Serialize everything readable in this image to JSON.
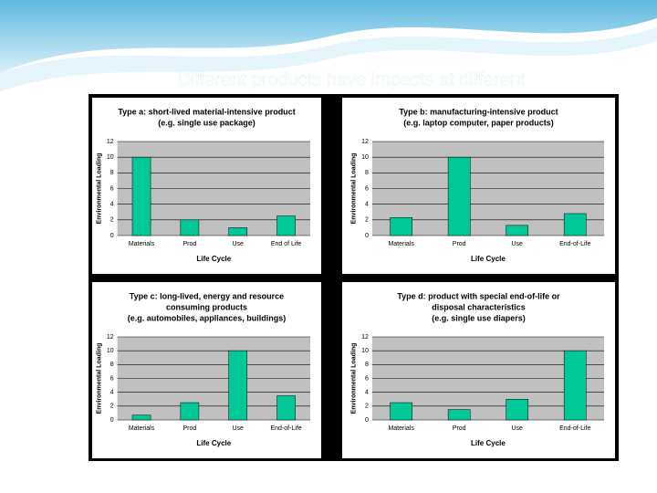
{
  "slide_title": "Different products have impacts at different",
  "chart_data": [
    {
      "type": "bar",
      "title": [
        "Type a: short-lived material-intensive product",
        "(e.g. single use package)"
      ],
      "categories": [
        "Materials",
        "Prod",
        "Use",
        "End of Life"
      ],
      "values": [
        10,
        2,
        1,
        2.5
      ],
      "color": "#00c896",
      "xlabel": "Life Cycle",
      "ylabel": "Environmental Loading",
      "ylim": [
        0,
        12
      ],
      "yticks": [
        0,
        2,
        4,
        6,
        8,
        10,
        12
      ],
      "grid": true
    },
    {
      "type": "bar",
      "title": [
        "Type b: manufacturing-intensive product",
        "(e.g. laptop computer, paper products)"
      ],
      "categories": [
        "Materials",
        "Prod",
        "Use",
        "End-of-Life"
      ],
      "values": [
        2.3,
        10,
        1.3,
        2.8
      ],
      "color": "#00c896",
      "xlabel": "Life Cycle",
      "ylabel": "Environmental Loading",
      "ylim": [
        0,
        12
      ],
      "yticks": [
        0,
        2,
        4,
        6,
        8,
        10,
        12
      ],
      "grid": true
    },
    {
      "type": "bar",
      "title": [
        "Type c: long-lived, energy and resource",
        "consuming products",
        "(e.g. automobiles, appliances, buildings)"
      ],
      "categories": [
        "Materials",
        "Prod",
        "Use",
        "End-of-Life"
      ],
      "values": [
        0.7,
        2.5,
        10,
        3.5
      ],
      "color": "#00c896",
      "xlabel": "Life Cycle",
      "ylabel": "Environmental Loading",
      "ylim": [
        0,
        12
      ],
      "yticks": [
        0,
        2,
        4,
        6,
        8,
        10,
        12
      ],
      "grid": true
    },
    {
      "type": "bar",
      "title": [
        "Type d: product with special end-of-life or",
        "disposal characteristics",
        "(e.g. single use diapers)"
      ],
      "categories": [
        "Materials",
        "Prod",
        "Use",
        "End-of-Life"
      ],
      "values": [
        2.5,
        1.5,
        3,
        10
      ],
      "color": "#00c896",
      "xlabel": "Life Cycle",
      "ylabel": "Environmental Loading",
      "ylim": [
        0,
        12
      ],
      "yticks": [
        0,
        2,
        4,
        6,
        8,
        10,
        12
      ],
      "grid": true
    }
  ]
}
